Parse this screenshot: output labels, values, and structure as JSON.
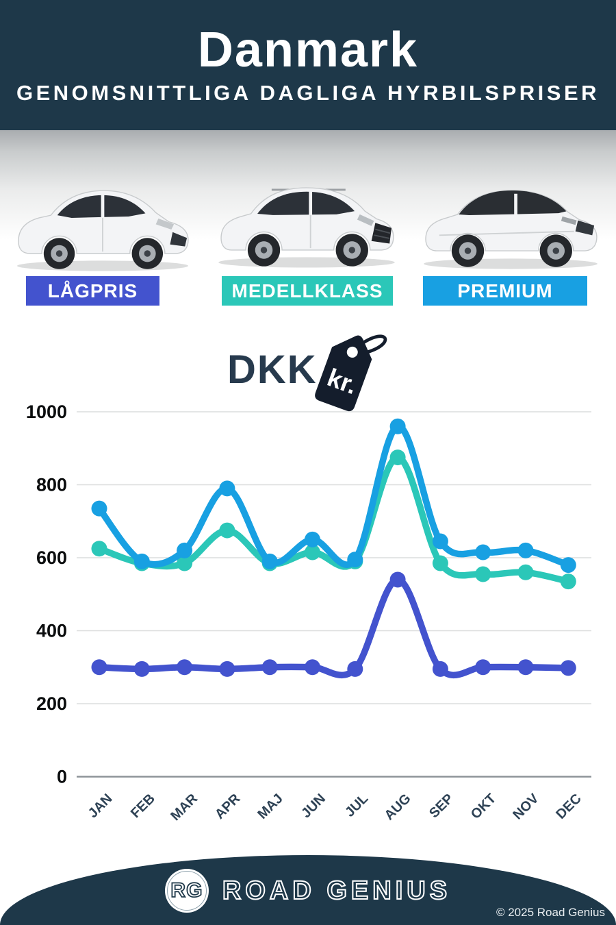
{
  "header": {
    "title": "Danmark",
    "subtitle": "GENOMSNITTLIGA DAGLIGA HYRBILSPRISER"
  },
  "categories": [
    {
      "id": "lagpris",
      "label": "LÅGPRIS",
      "color": "#4353CE"
    },
    {
      "id": "medellklass",
      "label": "MEDELLKLASS",
      "color": "#2BC7B8"
    },
    {
      "id": "premium",
      "label": "PREMIUM",
      "color": "#18A0E2"
    }
  ],
  "currency": {
    "code": "DKK",
    "symbol": "kr."
  },
  "chart_data": {
    "type": "line",
    "categories": [
      "JAN",
      "FEB",
      "MAR",
      "APR",
      "MAJ",
      "JUN",
      "JUL",
      "AUG",
      "SEP",
      "OKT",
      "NOV",
      "DEC"
    ],
    "series": [
      {
        "name": "MEDELLKLASS",
        "color": "#2BC7B8",
        "values": [
          625,
          585,
          585,
          675,
          585,
          615,
          590,
          875,
          585,
          555,
          560,
          535
        ]
      },
      {
        "name": "PREMIUM",
        "color": "#18A0E2",
        "values": [
          735,
          590,
          620,
          790,
          590,
          650,
          595,
          960,
          645,
          615,
          620,
          580
        ]
      },
      {
        "name": "LÅGPRIS",
        "color": "#4353CE",
        "values": [
          300,
          295,
          300,
          295,
          300,
          300,
          295,
          540,
          295,
          300,
          300,
          298
        ]
      }
    ],
    "ylim": [
      0,
      1000
    ],
    "yticks": [
      0,
      200,
      400,
      600,
      800,
      1000
    ],
    "grid": true,
    "legend_position": "none",
    "x_tick_rotation": -45
  },
  "footer": {
    "logo_initials": "RG",
    "brand": "ROAD GENIUS",
    "copyright": "© 2025 Road Genius"
  }
}
